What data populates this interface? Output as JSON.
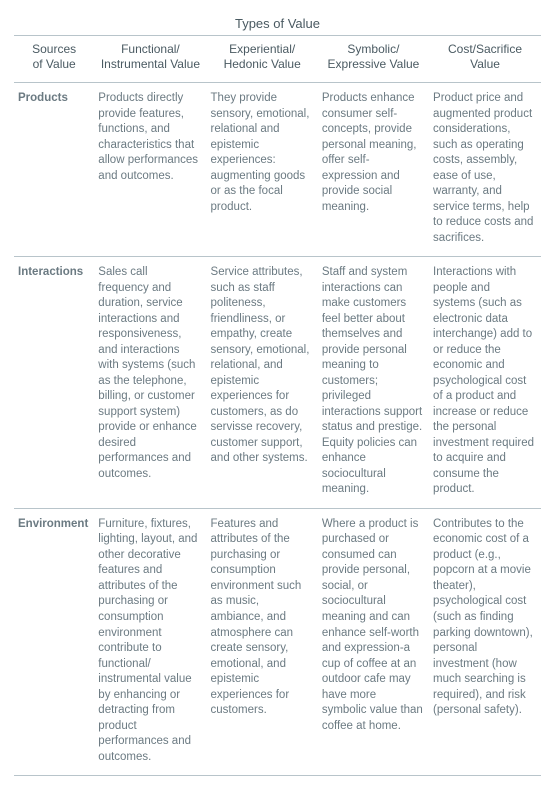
{
  "table": {
    "super_header": "Types of Value",
    "columns": {
      "source_label_line1": "Sources",
      "source_label_line2": "of Value",
      "col1_line1": "Functional/",
      "col1_line2": "Instrumental Value",
      "col2_line1": "Experiential/",
      "col2_line2": "Hedonic Value",
      "col3_line1": "Symbolic/",
      "col3_line2": "Expressive Value",
      "col4_line1": "Cost/Sacrifice",
      "col4_line2": "Value"
    },
    "rows": [
      {
        "label": "Products",
        "c1": "Products directly provide features, functions, and characteristics that allow performances and outcomes.",
        "c2": "They provide sensory, emotional, relational and epistemic experiences: augmenting goods or as the focal product.",
        "c3": "Products enhance consumer self-concepts, provide personal meaning, offer self-expression and provide social meaning.",
        "c4": "Product price and augmented product considerations, such as operating costs, assembly, ease of use, warranty, and service terms, help to reduce costs and sacrifices."
      },
      {
        "label": "Interactions",
        "c1": "Sales call frequency and duration, service interactions and responsiveness, and interactions with systems (such as the telephone, billing, or customer support system) provide or enhance desired performances and outcomes.",
        "c2": "Service attributes, such as staff politeness, friendliness, or empathy, create sensory, emotional, relational, and epistemic experiences for customers, as do servisse recovery, customer support, and other systems.",
        "c3": "Staff and system interactions can make customers feel better about themselves and provide personal meaning to customers; privileged interactions support status and prestige. Equity policies can enhance sociocultural meaning.",
        "c4": "Interactions with people and systems (such as electronic data interchange) add to or reduce the economic and psychological cost of a product and increase or reduce the personal investment required to acquire and consume the product."
      },
      {
        "label": "Environment",
        "c1": "Furniture, fixtures, lighting, layout, and other decorative features and attributes of the purchasing or consumption environment contribute to functional/ instrumental value by enhancing or detracting from product performances and outcomes.",
        "c2": "Features and attributes of the purchasing or consumption environment such as music, ambiance, and atmosphere can create sensory, emotional, and epistemic experiences for customers.",
        "c3": "Where a product is purchased or consumed can provide personal, social, or sociocultural meaning and can enhance self-worth and expression-a cup of coffee at an outdoor cafe may have more symbolic value than coffee at home.",
        "c4": "Contributes to the economic cost of a product (e.g., popcorn at a movie theater), psychological cost (such as finding parking downtown), personal investment (how much searching is required), and risk (personal safety)."
      }
    ]
  }
}
